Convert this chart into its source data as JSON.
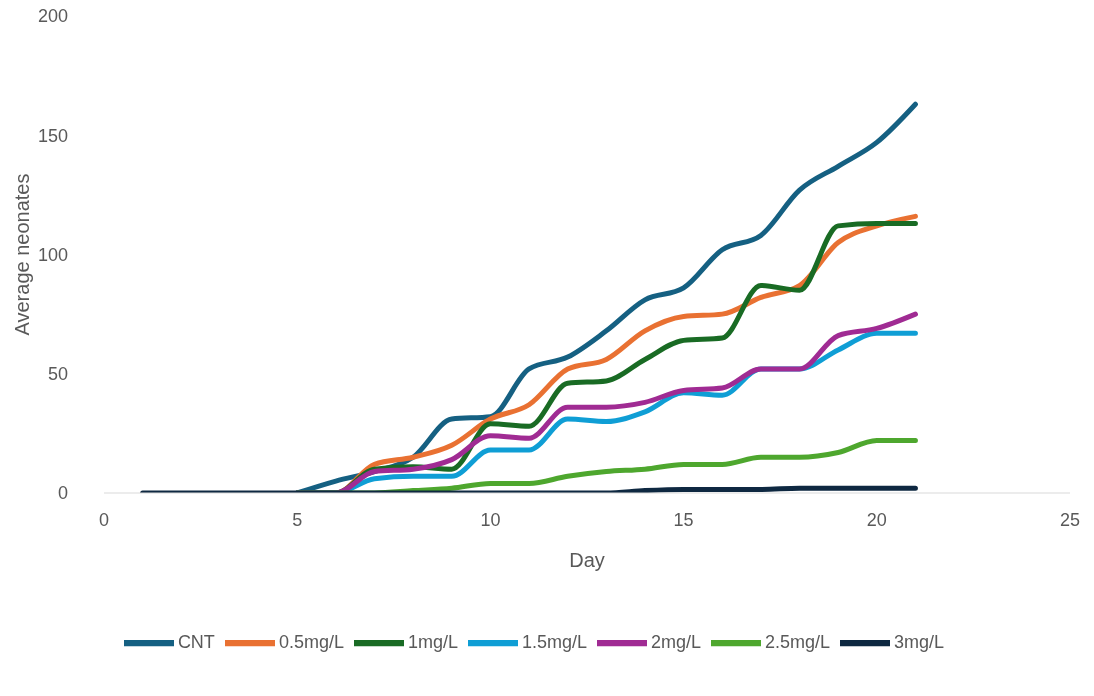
{
  "chart_data": {
    "type": "line",
    "xlabel": "Day",
    "ylabel": "Average neonates",
    "x": [
      1,
      2,
      3,
      4,
      5,
      6,
      7,
      8,
      9,
      10,
      11,
      12,
      13,
      14,
      15,
      16,
      17,
      18,
      19,
      20,
      21
    ],
    "series": [
      {
        "name": "CNT",
        "color": "#156082",
        "values": [
          null,
          null,
          null,
          null,
          0,
          5,
          9,
          15,
          31,
          32,
          52,
          57,
          68,
          81,
          86,
          102,
          108,
          127,
          137,
          147,
          163
        ]
      },
      {
        "name": "0.5mg/L",
        "color": "#e97132",
        "values": [
          null,
          null,
          null,
          null,
          0,
          0,
          12,
          15,
          20,
          31,
          37,
          52,
          56,
          68,
          74,
          75,
          82,
          87,
          105,
          112,
          116
        ]
      },
      {
        "name": "1mg/L",
        "color": "#196b24",
        "values": [
          null,
          null,
          null,
          null,
          0,
          0,
          10,
          11,
          10,
          29,
          28,
          46,
          47,
          56,
          64,
          65,
          87,
          85,
          112,
          113,
          113
        ]
      },
      {
        "name": "1.5mg/L",
        "color": "#0f9ed5",
        "values": [
          null,
          null,
          null,
          null,
          0,
          0,
          6,
          7,
          7,
          18,
          18,
          31,
          30,
          34,
          42,
          41,
          52,
          52,
          60,
          67,
          67
        ]
      },
      {
        "name": "2mg/L",
        "color": "#a02b93",
        "values": [
          null,
          null,
          null,
          null,
          0,
          0,
          9,
          10,
          14,
          24,
          23,
          36,
          36,
          38,
          43,
          44,
          52,
          52,
          66,
          69,
          75
        ]
      },
      {
        "name": "2.5mg/L",
        "color": "#4ea72e",
        "values": [
          null,
          null,
          null,
          null,
          0,
          0,
          0,
          1,
          2,
          4,
          4,
          7,
          9,
          10,
          12,
          12,
          15,
          15,
          17,
          22,
          22
        ]
      },
      {
        "name": "3mg/L",
        "color": "#0e2841",
        "values": [
          0,
          0,
          0,
          0,
          0,
          0,
          0,
          0,
          0,
          0,
          0,
          0,
          0,
          1,
          1.5,
          1.5,
          1.5,
          2,
          2,
          2,
          2
        ]
      }
    ],
    "xlim": [
      0,
      25
    ],
    "xticks": [
      0,
      5,
      10,
      15,
      20,
      25
    ],
    "ylim": [
      0,
      200
    ],
    "yticks": [
      0,
      50,
      100,
      150,
      200
    ],
    "grid": false,
    "legend": "bottom",
    "marker": "none",
    "line_style": "solid"
  }
}
